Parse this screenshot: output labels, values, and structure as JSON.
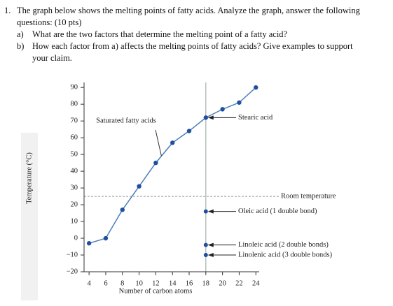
{
  "question": {
    "number": "1.",
    "lines": [
      "The graph below shows the melting points of fatty acids. Analyze the graph, answer the following",
      "questions: (10 pts)"
    ],
    "items": [
      {
        "label": "a)",
        "lines": [
          "What are the two factors that determine the melting point of a fatty acid?"
        ]
      },
      {
        "label": "b)",
        "lines": [
          "How each factor from a) affects the melting points of fatty acids? Give examples to support",
          "your claim."
        ]
      }
    ]
  },
  "chart_data": {
    "type": "line",
    "x_label": "Number of carbon atoms",
    "y_label": "Temperature (°C)",
    "xlim": [
      3.4,
      24.4
    ],
    "xticks": [
      4,
      6,
      8,
      10,
      12,
      14,
      16,
      18,
      20,
      22,
      24
    ],
    "ylim": [
      -20,
      93
    ],
    "yticks": [
      {
        "value": -20,
        "label": "−20"
      },
      {
        "value": -10,
        "label": "−10"
      },
      0,
      10,
      20,
      30,
      40,
      50,
      60,
      70,
      80,
      90
    ],
    "series": [
      {
        "name": "Saturated fatty acids",
        "color": "#4a7ebb",
        "marker_color": "#1f4fa0",
        "x": [
          4,
          6,
          8,
          10,
          12,
          14,
          16,
          18,
          20,
          22,
          24
        ],
        "values": [
          -3,
          0,
          17,
          31,
          45,
          57,
          64,
          72,
          77,
          81,
          90
        ]
      }
    ],
    "x_reference": 18,
    "reference_line": {
      "text": "Room temperature",
      "value": 25
    },
    "callout": {
      "text": "Stearic acid",
      "x": 18,
      "y": 72
    },
    "unsaturated": [
      {
        "name": "Oleic acid (1 double bond)",
        "x": 18,
        "value": 16
      },
      {
        "name": "Linoleic acid (2 double bonds)",
        "x": 18,
        "value": -4
      },
      {
        "name": "Linolenic acid (3 double bonds)",
        "x": 18,
        "value": -10
      }
    ]
  }
}
